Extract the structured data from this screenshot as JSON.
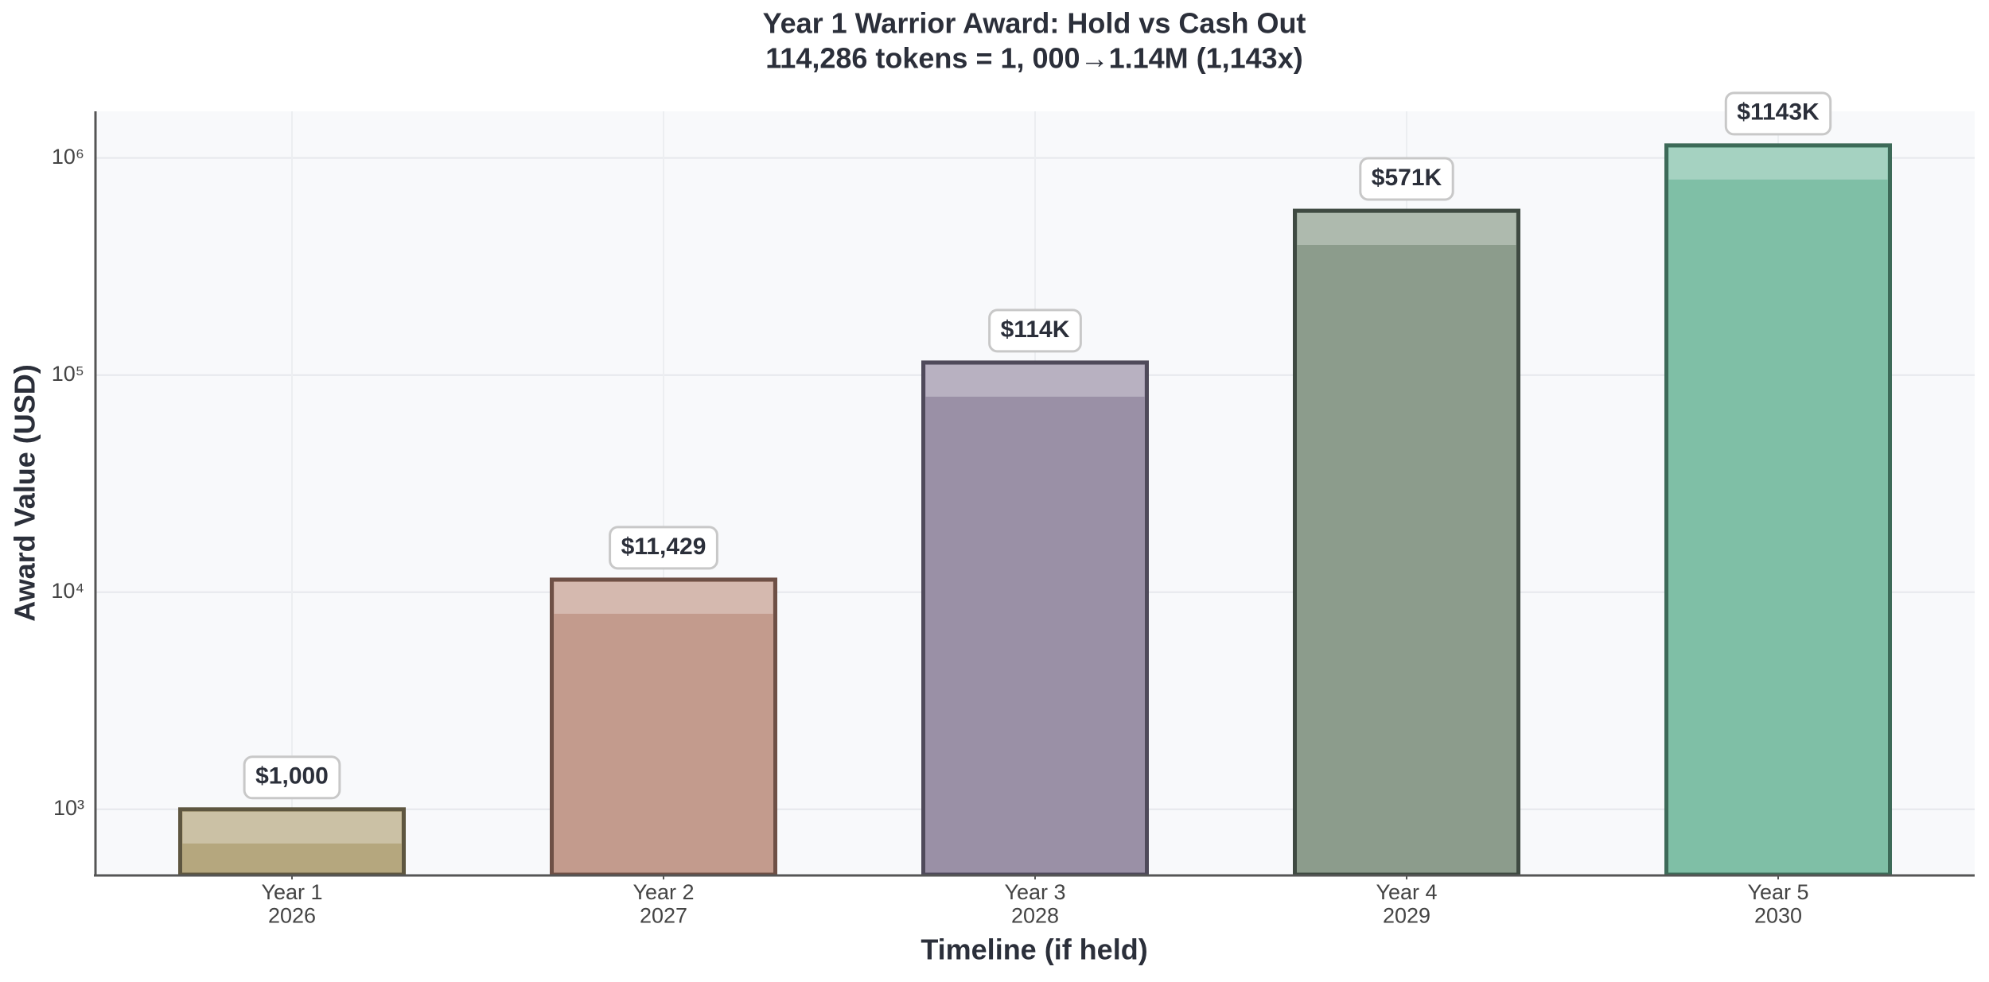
{
  "chart_data": {
    "type": "bar",
    "title": "Year 1 Warrior Award: Hold vs Cash Out",
    "subtitle": "114,286 tokens = 1, 000→1.14M (1,143x)",
    "x_label": "Timeline (if held)",
    "y_label": "Award Value (USD)",
    "categories": [
      "Year 1\n2026",
      "Year 2\n2027",
      "Year 3\n2028",
      "Year 4\n2029",
      "Year 5\n2030"
    ],
    "values": [
      1000,
      11429,
      114286,
      571430,
      1142860
    ],
    "value_labels": [
      "$1,000",
      "$11,429",
      "$114K",
      "$571K",
      "$1143K"
    ],
    "colors": [
      "#b5a77e",
      "#c39b8d",
      "#9a90a6",
      "#8c9c8c",
      "#7fbfa6"
    ],
    "edge_colors": [
      "#5e5640",
      "#6e5046",
      "#4f4a5a",
      "#3f4a42",
      "#3d6a58"
    ],
    "log_scale": true,
    "ylim": [
      500,
      1640000
    ],
    "yticks": [
      {
        "value": 1000,
        "label": "10³"
      },
      {
        "value": 10000,
        "label": "10⁴"
      },
      {
        "value": 100000,
        "label": "10⁵"
      },
      {
        "value": 1000000,
        "label": "10⁶"
      }
    ],
    "grid": true
  }
}
